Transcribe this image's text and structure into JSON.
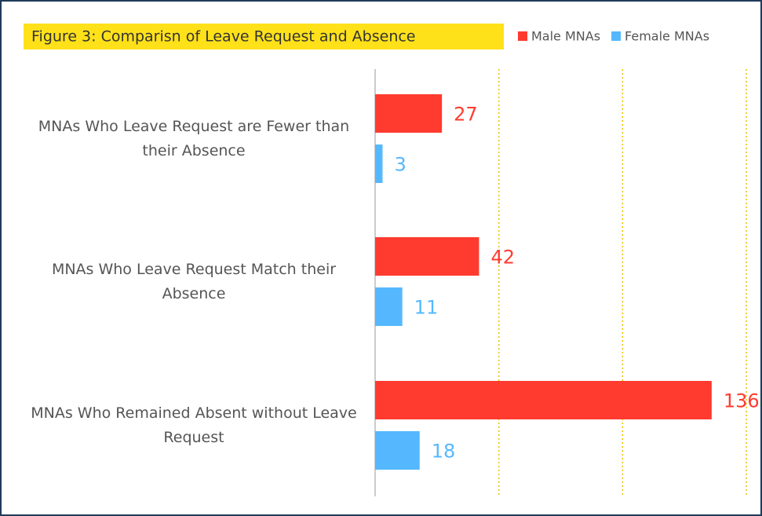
{
  "chart_data": {
    "type": "bar",
    "orientation": "horizontal",
    "title": "Figure 3: Comparisn of Leave Request and Absence",
    "categories": [
      "MNAs Who Leave Request are Fewer than their Absence",
      "MNAs Who Leave Request Match their Absence",
      "MNAs Who Remained Absent without Leave Request"
    ],
    "series": [
      {
        "name": "Male MNAs",
        "color": "#ff3b2f",
        "values": [
          27,
          42,
          136
        ]
      },
      {
        "name": "Female MNAs",
        "color": "#55b8ff",
        "values": [
          3,
          11,
          18
        ]
      }
    ],
    "xlim": [
      0,
      150
    ],
    "xticks": [
      0,
      50,
      100,
      150
    ],
    "grid": true,
    "legend": "top-right"
  }
}
